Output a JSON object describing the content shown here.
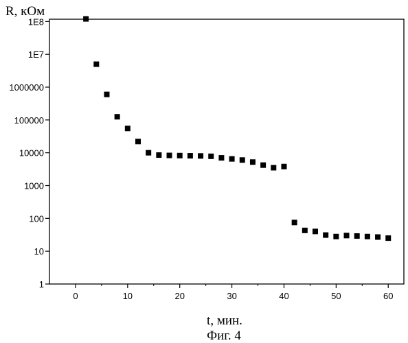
{
  "chart_data": {
    "type": "scatter",
    "ylabel": "R, кОм",
    "xlabel": "t, мин.",
    "caption": "Фиг. 4",
    "xlim": [
      -5,
      63
    ],
    "ylim": [
      1,
      100000000
    ],
    "yscale": "log",
    "grid": false,
    "xticks": [
      0,
      10,
      20,
      30,
      40,
      50,
      60
    ],
    "xtick_labels": [
      "0",
      "10",
      "20",
      "30",
      "40",
      "50",
      "60"
    ],
    "yticks": [
      1,
      10,
      100,
      1000,
      10000,
      100000,
      1000000,
      10000000,
      100000000
    ],
    "ytick_labels": [
      "1",
      "10",
      "100",
      "1000",
      "10000",
      "100000",
      "1000000",
      "1E7",
      "1E8"
    ],
    "series": [
      {
        "marker": "square",
        "color": "#000000",
        "x": [
          2,
          4,
          6,
          8,
          10,
          12,
          14,
          16,
          18,
          20,
          22,
          24,
          26,
          28,
          30,
          32,
          34,
          36,
          38,
          40,
          42,
          44,
          46,
          48,
          50,
          52,
          54,
          56,
          58,
          60
        ],
        "y": [
          120000000,
          5000000,
          600000,
          125000,
          55000,
          22000,
          10000,
          8500,
          8300,
          8200,
          8100,
          8000,
          7800,
          7000,
          6500,
          6000,
          5200,
          4200,
          3500,
          3800,
          75,
          43,
          40,
          31,
          28,
          30,
          29,
          28,
          27,
          25
        ]
      }
    ]
  }
}
